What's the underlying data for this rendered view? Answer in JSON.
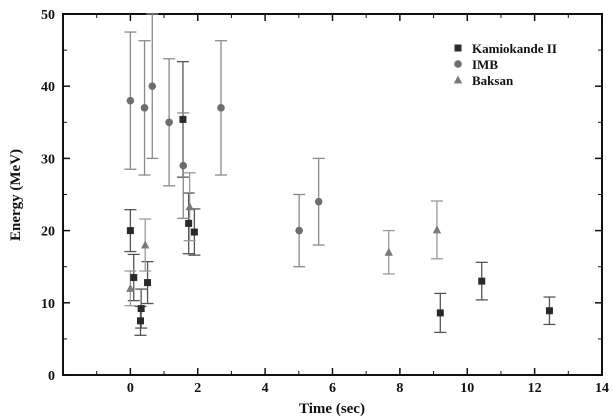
{
  "chart_data": {
    "type": "scatter",
    "title": "",
    "xlabel": "Time (sec)",
    "ylabel": "Energy (MeV)",
    "xlim": [
      -2,
      14
    ],
    "ylim": [
      0,
      50
    ],
    "xticks": [
      "0",
      "2",
      "4",
      "6",
      "8",
      "10",
      "12",
      "14"
    ],
    "yticks": [
      "0",
      "10",
      "20",
      "30",
      "40",
      "50"
    ],
    "grid": false,
    "legend_position": "top-right",
    "series": [
      {
        "name": "Kamiokande II",
        "marker": "square",
        "color": "#2a2a2a",
        "errorbar_color": "#555555",
        "points": [
          {
            "x": 0.0,
            "y": 20.0,
            "err": 2.9
          },
          {
            "x": 0.1,
            "y": 13.5,
            "err": 3.2
          },
          {
            "x": 0.3,
            "y": 7.5,
            "err": 2.0
          },
          {
            "x": 0.32,
            "y": 9.2,
            "err": 2.7
          },
          {
            "x": 0.51,
            "y": 12.8,
            "err": 2.9
          },
          {
            "x": 1.56,
            "y": 35.4,
            "err": 8.0
          },
          {
            "x": 1.73,
            "y": 21.0,
            "err": 4.2
          },
          {
            "x": 1.9,
            "y": 19.8,
            "err": 3.2
          },
          {
            "x": 9.2,
            "y": 8.6,
            "err": 2.7
          },
          {
            "x": 10.43,
            "y": 13.0,
            "err": 2.6
          },
          {
            "x": 12.44,
            "y": 8.9,
            "err": 1.9
          }
        ]
      },
      {
        "name": "IMB",
        "marker": "circle",
        "color": "#6e6e6e",
        "errorbar_color": "#8a8a8a",
        "points": [
          {
            "x": 0.0,
            "y": 38.0,
            "err": 9.5
          },
          {
            "x": 0.42,
            "y": 37.0,
            "err": 9.3
          },
          {
            "x": 0.65,
            "y": 40.0,
            "err": 10.0
          },
          {
            "x": 1.15,
            "y": 35.0,
            "err": 8.8
          },
          {
            "x": 1.57,
            "y": 29.0,
            "err": 7.3
          },
          {
            "x": 2.69,
            "y": 37.0,
            "err": 9.3
          },
          {
            "x": 5.01,
            "y": 20.0,
            "err": 5.0
          },
          {
            "x": 5.59,
            "y": 24.0,
            "err": 6.0
          }
        ]
      },
      {
        "name": "Baksan",
        "marker": "triangle",
        "color": "#7a7a7a",
        "errorbar_color": "#9a9a9a",
        "points": [
          {
            "x": 0.0,
            "y": 12.0,
            "err": 2.4
          },
          {
            "x": 0.44,
            "y": 18.0,
            "err": 3.6
          },
          {
            "x": 1.76,
            "y": 23.3,
            "err": 4.7
          },
          {
            "x": 7.67,
            "y": 17.0,
            "err": 3.0
          },
          {
            "x": 9.1,
            "y": 20.1,
            "err": 4.0
          }
        ]
      }
    ]
  }
}
